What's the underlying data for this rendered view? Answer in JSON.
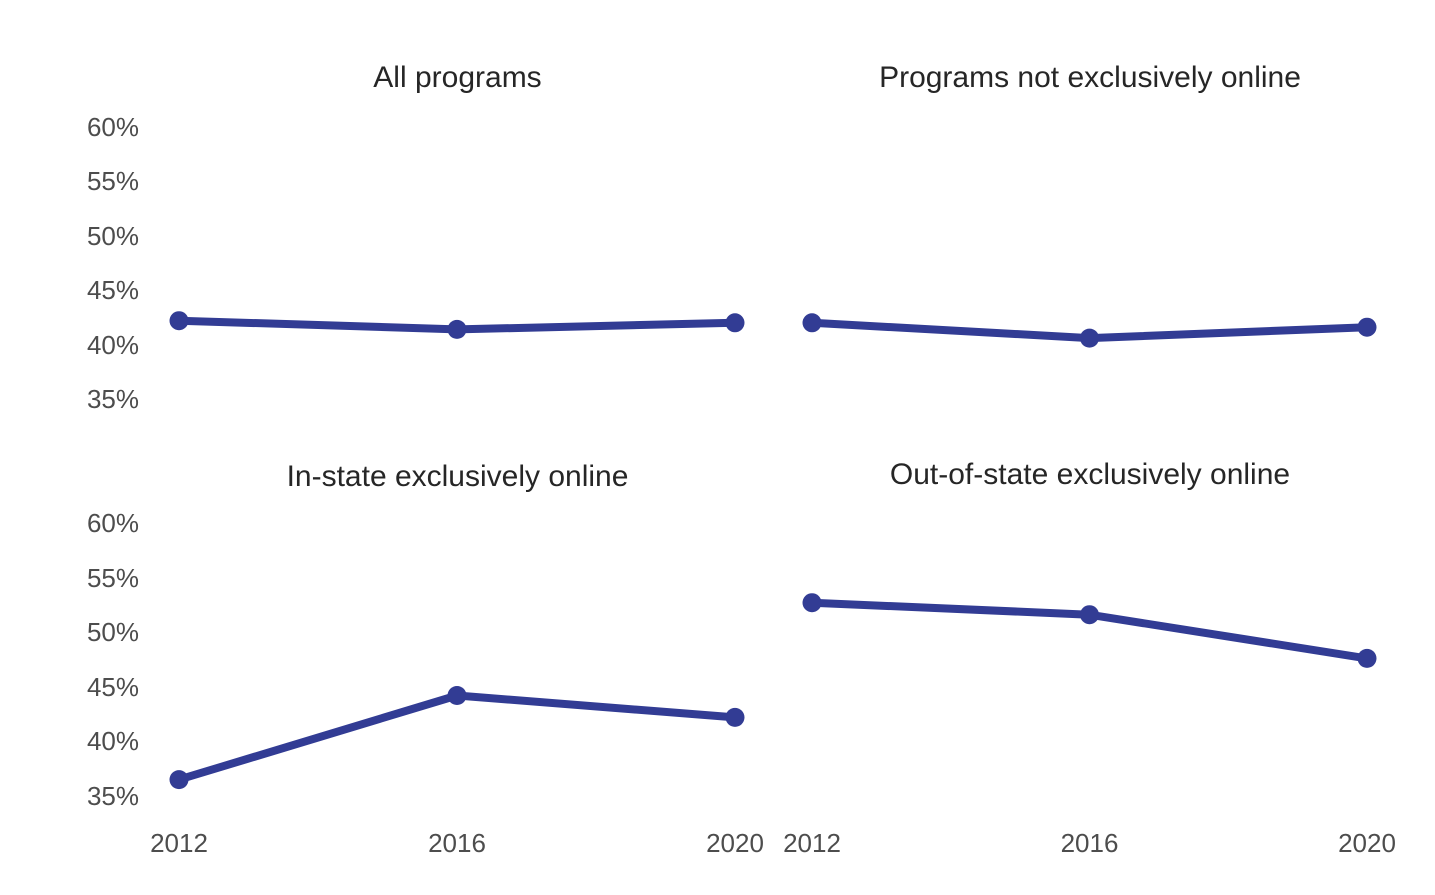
{
  "page": {
    "background": "#ffffff"
  },
  "styles": {
    "line_color": "#323C94",
    "point_color": "#323C94",
    "title_color": "#262626",
    "tick_color": "#4D4D4D"
  },
  "chart_data": [
    {
      "type": "line",
      "title": "All programs",
      "x": [
        2012,
        2016,
        2020
      ],
      "xticklabels": [
        "2012",
        "2016",
        "2020"
      ],
      "values": [
        42.2,
        41.4,
        42.0
      ],
      "yticks": [
        35,
        40,
        45,
        50,
        55,
        60
      ],
      "yticklabels": [
        "35%",
        "40%",
        "45%",
        "50%",
        "55%",
        "60%"
      ],
      "ylim": [
        33,
        62
      ],
      "grid": false,
      "legend_position": "none",
      "show_y_tick_labels": true,
      "show_x_tick_labels": false
    },
    {
      "type": "line",
      "title": "Programs not exclusively online",
      "x": [
        2012,
        2016,
        2020
      ],
      "xticklabels": [
        "2012",
        "2016",
        "2020"
      ],
      "values": [
        42.0,
        40.6,
        41.6
      ],
      "yticks": [
        35,
        40,
        45,
        50,
        55,
        60
      ],
      "yticklabels": [
        "35%",
        "40%",
        "45%",
        "50%",
        "55%",
        "60%"
      ],
      "ylim": [
        33,
        62
      ],
      "grid": false,
      "legend_position": "none",
      "show_y_tick_labels": false,
      "show_x_tick_labels": false
    },
    {
      "type": "line",
      "title": "In-state exclusively online",
      "x": [
        2012,
        2016,
        2020
      ],
      "xticklabels": [
        "2012",
        "2016",
        "2020"
      ],
      "values": [
        36.5,
        44.2,
        42.2
      ],
      "yticks": [
        35,
        40,
        45,
        50,
        55,
        60
      ],
      "yticklabels": [
        "35%",
        "40%",
        "45%",
        "50%",
        "55%",
        "60%"
      ],
      "ylim": [
        33,
        62
      ],
      "grid": false,
      "legend_position": "none",
      "show_y_tick_labels": true,
      "show_x_tick_labels": true
    },
    {
      "type": "line",
      "title": "Out-of-state exclusively online",
      "x": [
        2012,
        2016,
        2020
      ],
      "xticklabels": [
        "2012",
        "2016",
        "2020"
      ],
      "values": [
        52.7,
        51.6,
        47.6
      ],
      "yticks": [
        35,
        40,
        45,
        50,
        55,
        60
      ],
      "yticklabels": [
        "35%",
        "40%",
        "45%",
        "50%",
        "55%",
        "60%"
      ],
      "ylim": [
        33,
        62
      ],
      "grid": false,
      "legend_position": "none",
      "show_y_tick_labels": false,
      "show_x_tick_labels": true
    }
  ]
}
